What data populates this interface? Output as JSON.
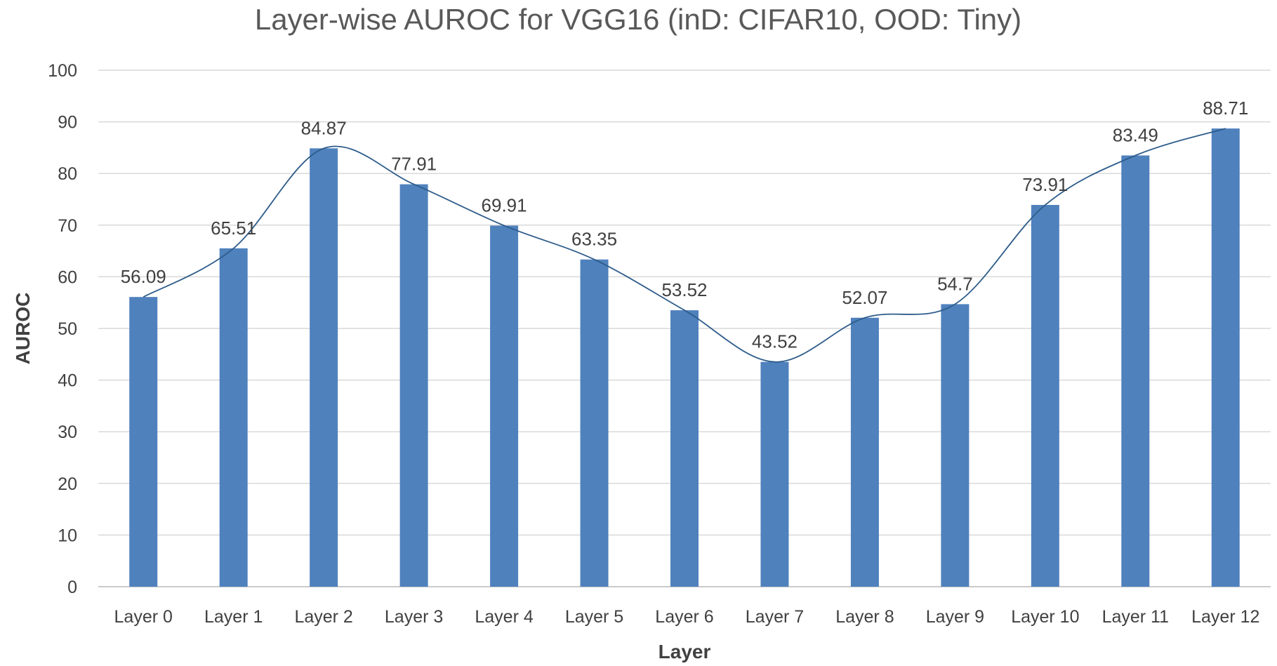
{
  "chart_data": {
    "type": "bar",
    "title": "Layer-wise AUROC for VGG16 (inD: CIFAR10, OOD: Tiny)",
    "xlabel": "Layer",
    "ylabel": "AUROC",
    "ylim": [
      0,
      100
    ],
    "yticks": [
      "0",
      "10",
      "20",
      "30",
      "40",
      "50",
      "60",
      "70",
      "80",
      "90",
      "100"
    ],
    "categories": [
      "Layer 0",
      "Layer 1",
      "Layer 2",
      "Layer 3",
      "Layer 4",
      "Layer 5",
      "Layer 6",
      "Layer 7",
      "Layer 8",
      "Layer 9",
      "Layer 10",
      "Layer 11",
      "Layer 12"
    ],
    "values": [
      56.09,
      65.51,
      84.87,
      77.91,
      69.91,
      63.35,
      53.52,
      43.52,
      52.07,
      54.7,
      73.91,
      83.49,
      88.71
    ],
    "data_labels": [
      "56.09",
      "65.51",
      "84.87",
      "77.91",
      "69.91",
      "63.35",
      "53.52",
      "43.52",
      "52.07",
      "54.7",
      "73.91",
      "83.49",
      "88.71"
    ],
    "trendline": "smoothed line through bar values",
    "grid": true,
    "legend": "none",
    "colors": {
      "bar": "#4f81bd",
      "line": "#2e5c8a",
      "grid": "#d9d9d9"
    }
  }
}
